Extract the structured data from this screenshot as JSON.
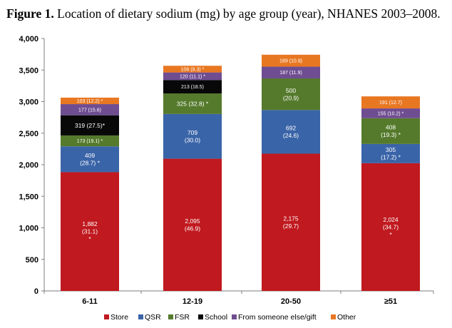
{
  "figure": {
    "label": "Figure 1.",
    "caption": "Location of dietary sodium (mg) by age group (year), NHANES 2003–2008."
  },
  "chart_data": {
    "type": "bar",
    "stacked": true,
    "categories": [
      "6-11",
      "12-19",
      "20-50",
      "≥51"
    ],
    "ylim": [
      0,
      4000
    ],
    "yticks": [
      0,
      500,
      1000,
      1500,
      2000,
      2500,
      3000,
      3500,
      4000
    ],
    "ytick_labels": [
      "0",
      "500",
      "1,000",
      "1,500",
      "2,000",
      "2,500",
      "3,000",
      "3,500",
      "4,000"
    ],
    "grid": false,
    "legend_position": "bottom",
    "series": [
      {
        "name": "Store",
        "color": "#c0191f",
        "text_color": "#ffffff",
        "values": [
          1882,
          2095,
          2175,
          2024
        ],
        "labels": [
          [
            "1,882",
            "(31.1)",
            "*"
          ],
          [
            "2,095",
            "(46.9)"
          ],
          [
            "2,175",
            "(29.7)"
          ],
          [
            "2,024",
            "(34.7)",
            "*"
          ]
        ]
      },
      {
        "name": "QSR",
        "color": "#3a64a8",
        "text_color": "#ffffff",
        "values": [
          409,
          709,
          692,
          305
        ],
        "labels": [
          [
            "409",
            "(28.7) *"
          ],
          [
            "709",
            "(30.0)"
          ],
          [
            "692",
            "(24.6)"
          ],
          [
            "305",
            "(17.2) *"
          ]
        ]
      },
      {
        "name": "FSR",
        "color": "#557a2c",
        "text_color": "#ffffff",
        "values": [
          173,
          325,
          500,
          408
        ],
        "labels": [
          [
            "173 (19.1) *"
          ],
          [
            "325 (32.8) *"
          ],
          [
            "500",
            "(20.9)"
          ],
          [
            "408",
            "(19.3) *"
          ]
        ]
      },
      {
        "name": "School",
        "color": "#080808",
        "text_color": "#ffffff",
        "values": [
          319,
          213,
          0,
          0
        ],
        "labels": [
          [
            "319 (27.5)*"
          ],
          [
            "213 (18.5)"
          ],
          [],
          []
        ]
      },
      {
        "name": "From someone else/gift",
        "color": "#6f4d91",
        "text_color": "#ffffff",
        "values": [
          177,
          120,
          187,
          155
        ],
        "labels": [
          [
            "177 (15.6)"
          ],
          [
            "120 (11.1) *"
          ],
          [
            "187 (11.9)"
          ],
          [
            "155 (10.2) *"
          ]
        ]
      },
      {
        "name": "Other",
        "color": "#e87722",
        "text_color": "#ffffff",
        "values": [
          103,
          106,
          189,
          191
        ],
        "labels": [
          [
            "103 (12.2) *"
          ],
          [
            "106 (9.3) *"
          ],
          [
            "189 (10.9)"
          ],
          [
            "191 (12.7)"
          ]
        ]
      }
    ]
  }
}
